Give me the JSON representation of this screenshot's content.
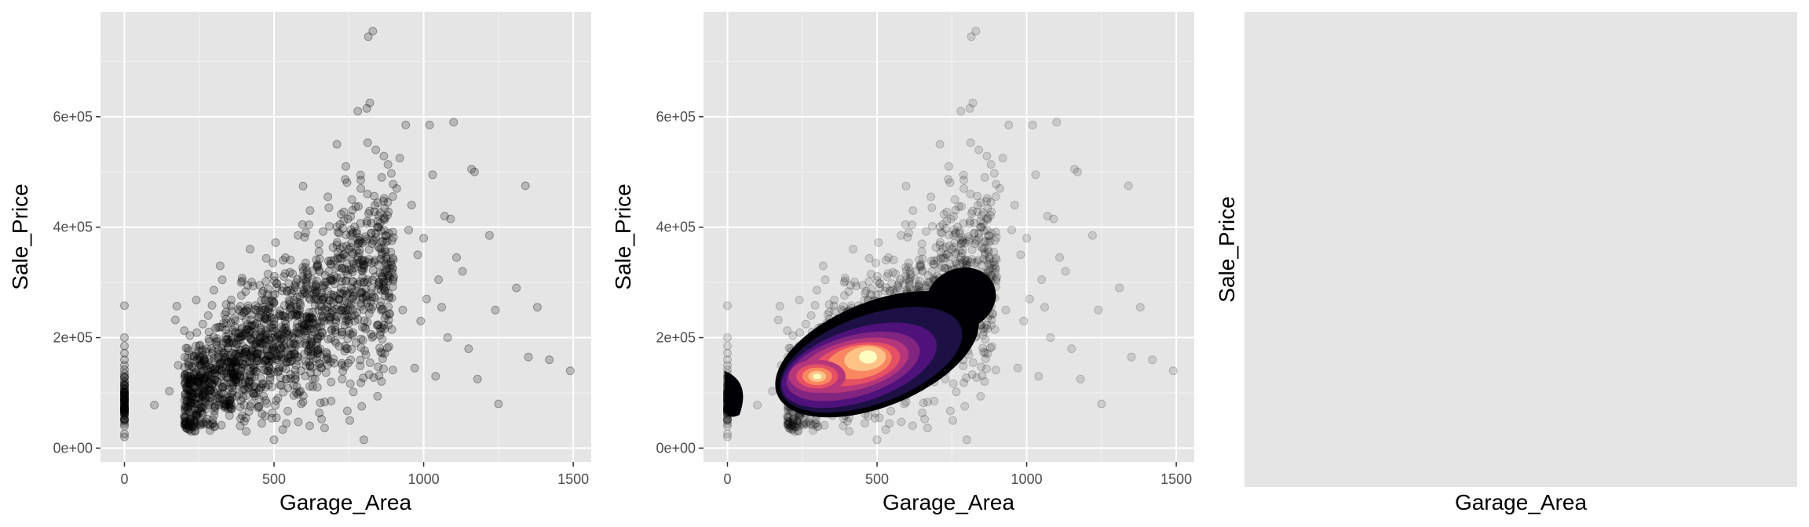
{
  "chart_data": [
    {
      "type": "scatter",
      "title": "",
      "xlabel": "Garage_Area",
      "ylabel": "Sale_Price",
      "xlim": [
        -80,
        1560
      ],
      "ylim": [
        -25000,
        790000
      ],
      "x_ticks": [
        0,
        500,
        1000,
        1500
      ],
      "x_tick_labels": [
        "0",
        "500",
        "1000",
        "1500"
      ],
      "y_ticks": [
        0,
        200000,
        400000,
        600000
      ],
      "y_tick_labels": [
        "0e+00",
        "2e+05",
        "4e+05",
        "6e+05"
      ],
      "grid": true,
      "point_color": "#000000",
      "point_alpha": 0.2,
      "points": [
        [
          0,
          258000
        ],
        [
          0,
          200000
        ],
        [
          0,
          185000
        ],
        [
          0,
          172000
        ],
        [
          0,
          160000
        ],
        [
          0,
          150000
        ],
        [
          0,
          142000
        ],
        [
          0,
          135000
        ],
        [
          0,
          128000
        ],
        [
          0,
          121000
        ],
        [
          0,
          115000
        ],
        [
          0,
          108000
        ],
        [
          0,
          101000
        ],
        [
          0,
          95000
        ],
        [
          0,
          88000
        ],
        [
          0,
          80000
        ],
        [
          0,
          72000
        ],
        [
          0,
          63000
        ],
        [
          0,
          52000
        ],
        [
          0,
          40000
        ],
        [
          100,
          78000
        ],
        [
          150,
          103000
        ],
        [
          170,
          232000
        ],
        [
          175,
          257000
        ],
        [
          180,
          150000
        ],
        [
          200,
          58000
        ],
        [
          210,
          125000
        ],
        [
          220,
          95000
        ],
        [
          230,
          38000
        ],
        [
          240,
          268000
        ],
        [
          250,
          120000
        ],
        [
          260,
          175000
        ],
        [
          270,
          85000
        ],
        [
          280,
          240000
        ],
        [
          290,
          145000
        ],
        [
          300,
          60000
        ],
        [
          310,
          198000
        ],
        [
          320,
          330000
        ],
        [
          330,
          110000
        ],
        [
          340,
          260000
        ],
        [
          360,
          92000
        ],
        [
          370,
          155000
        ],
        [
          380,
          200000
        ],
        [
          390,
          300000
        ],
        [
          400,
          130000
        ],
        [
          410,
          215000
        ],
        [
          420,
          360000
        ],
        [
          430,
          170000
        ],
        [
          440,
          250000
        ],
        [
          450,
          105000
        ],
        [
          460,
          280000
        ],
        [
          470,
          190000
        ],
        [
          480,
          315000
        ],
        [
          490,
          142000
        ],
        [
          500,
          15000
        ],
        [
          500,
          230000
        ],
        [
          505,
          372000
        ],
        [
          510,
          160000
        ],
        [
          520,
          205000
        ],
        [
          530,
          340000
        ],
        [
          540,
          125000
        ],
        [
          550,
          268000
        ],
        [
          560,
          182000
        ],
        [
          570,
          295000
        ],
        [
          580,
          385000
        ],
        [
          590,
          140000
        ],
        [
          600,
          220000
        ],
        [
          610,
          320000
        ],
        [
          620,
          430000
        ],
        [
          630,
          175000
        ],
        [
          640,
          270000
        ],
        [
          650,
          370000
        ],
        [
          660,
          210000
        ],
        [
          670,
          300000
        ],
        [
          680,
          455000
        ],
        [
          690,
          245000
        ],
        [
          700,
          340000
        ],
        [
          710,
          550000
        ],
        [
          720,
          405000
        ],
        [
          730,
          280000
        ],
        [
          740,
          510000
        ],
        [
          750,
          360000
        ],
        [
          760,
          450000
        ],
        [
          770,
          230000
        ],
        [
          780,
          610000
        ],
        [
          790,
          470000
        ],
        [
          800,
          325000
        ],
        [
          800,
          15000
        ],
        [
          810,
          615000
        ],
        [
          815,
          745000
        ],
        [
          820,
          625000
        ],
        [
          830,
          755000
        ],
        [
          840,
          540000
        ],
        [
          850,
          400000
        ],
        [
          860,
          490000
        ],
        [
          870,
          285000
        ],
        [
          880,
          445000
        ],
        [
          890,
          355000
        ],
        [
          900,
          310000
        ],
        [
          910,
          470000
        ],
        [
          920,
          525000
        ],
        [
          930,
          250000
        ],
        [
          940,
          585000
        ],
        [
          950,
          395000
        ],
        [
          960,
          440000
        ],
        [
          970,
          145000
        ],
        [
          980,
          350000
        ],
        [
          990,
          230000
        ],
        [
          1000,
          380000
        ],
        [
          1010,
          270000
        ],
        [
          1020,
          585000
        ],
        [
          1030,
          495000
        ],
        [
          1040,
          130000
        ],
        [
          1050,
          305000
        ],
        [
          1060,
          255000
        ],
        [
          1070,
          420000
        ],
        [
          1080,
          200000
        ],
        [
          1090,
          415000
        ],
        [
          1100,
          590000
        ],
        [
          1110,
          345000
        ],
        [
          1130,
          320000
        ],
        [
          1150,
          180000
        ],
        [
          1160,
          505000
        ],
        [
          1170,
          500000
        ],
        [
          1180,
          125000
        ],
        [
          1220,
          385000
        ],
        [
          1240,
          250000
        ],
        [
          1250,
          80000
        ],
        [
          1310,
          290000
        ],
        [
          1340,
          475000
        ],
        [
          1350,
          165000
        ],
        [
          1380,
          255000
        ],
        [
          1420,
          160000
        ],
        [
          1490,
          140000
        ]
      ],
      "dense_region": {
        "x_range": [
          200,
          900
        ],
        "y_center": [
          90000,
          330000
        ],
        "y_spread": [
          45000,
          90000
        ]
      }
    },
    {
      "type": "scatter",
      "title": "",
      "xlabel": "Garage_Area",
      "ylabel": "Sale_Price",
      "xlim": [
        -80,
        1560
      ],
      "ylim": [
        -25000,
        790000
      ],
      "x_ticks": [
        0,
        500,
        1000,
        1500
      ],
      "x_tick_labels": [
        "0",
        "500",
        "1000",
        "1500"
      ],
      "y_ticks": [
        0,
        200000,
        400000,
        600000
      ],
      "y_tick_labels": [
        "0e+00",
        "2e+05",
        "4e+05",
        "6e+05"
      ],
      "grid": true,
      "point_alpha": 0.12,
      "overlay": "filled 2D density contours (magma palette)",
      "density_peaks": [
        [
          300,
          130000
        ],
        [
          470,
          165000
        ]
      ],
      "palette": [
        "#000004",
        "#1c1044",
        "#4f127b",
        "#812581",
        "#b5367a",
        "#e55064",
        "#fb8761",
        "#fec287",
        "#fcfdbf"
      ]
    },
    {
      "type": "scatter",
      "title": "",
      "xlabel": "Garage_Area",
      "ylabel": "Sale_Price",
      "empty": true
    }
  ],
  "colors": {
    "panel_background": "#e5e5e5",
    "grid_major": "#ffffff",
    "tick_text": "#4d4d4d",
    "axis_title": "#000000"
  }
}
